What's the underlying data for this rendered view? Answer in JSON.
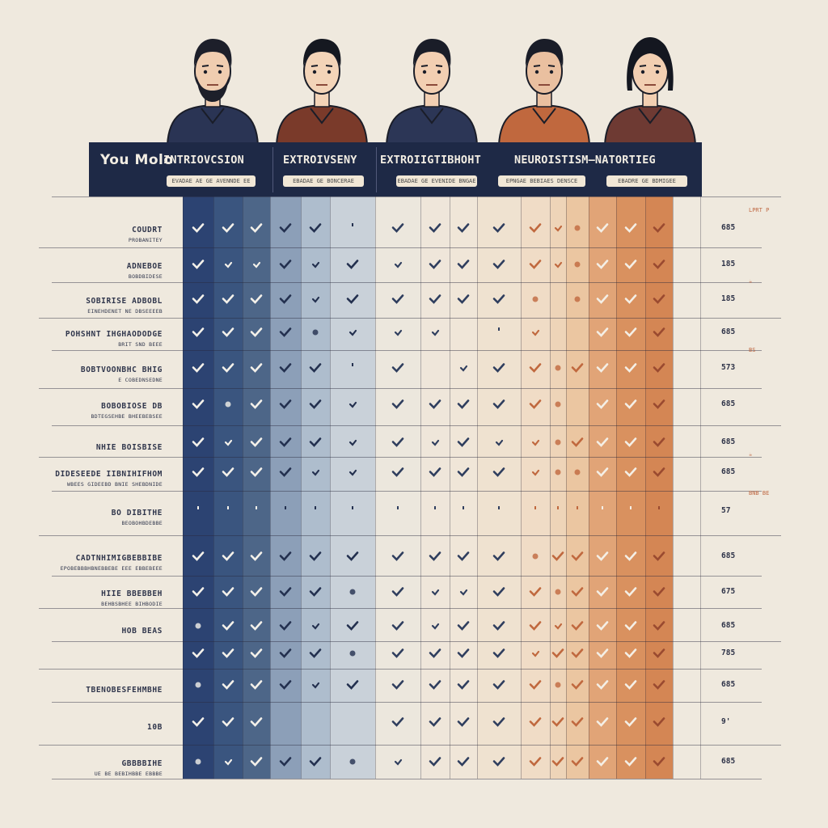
{
  "header": {
    "corner_label": "You Molo",
    "traits": [
      {
        "title": "INTRIOVCSION",
        "pill": "EVADAE AE GE AVENNDE EE"
      },
      {
        "title": "EXTROIVSENY",
        "pill": "EBADAE GE BONCERAE"
      },
      {
        "title": "EXTROIIGTIBHOHT",
        "pill": "EBADAE GE EVENIDE BNGAE"
      },
      {
        "title": "NEUROISTISM–NATORTIEG",
        "pill": "EPNGAE BEBIAES DENSCE"
      },
      {
        "title": "",
        "pill": "EBADRE GE BDMIGEE"
      }
    ]
  },
  "people": [
    {
      "name": "person-1-icon",
      "shirt": "#2a3454",
      "skin": "#f0cdb0",
      "hair": "#1d1f2a",
      "beard": true
    },
    {
      "name": "person-2-icon",
      "shirt": "#7a3a2a",
      "skin": "#f3d4b8",
      "hair": "#151820",
      "beard": false
    },
    {
      "name": "person-3-icon",
      "shirt": "#2c3656",
      "skin": "#f2cfb2",
      "hair": "#1a1d28",
      "beard": false
    },
    {
      "name": "person-4-icon",
      "shirt": "#c0683e",
      "skin": "#eac0a0",
      "hair": "#1a1d28",
      "beard": false
    },
    {
      "name": "person-5-icon",
      "shirt": "#6e3a33",
      "skin": "#f2cfb2",
      "hair": "#141720",
      "beard": false
    }
  ],
  "colors": {
    "navy": "#1e2946",
    "columns": [
      "#2c4372",
      "#3a557f",
      "#4d6688",
      "#8c9fb8",
      "#aebdcd",
      "#c9d1d9",
      "#ece7dd",
      "#efe6da",
      "#f0e6d8",
      "#efe2d0",
      "#f0dcc6",
      "#eed4b8",
      "#ebc6a1",
      "#e1a477",
      "#d9915f",
      "#d48654"
    ]
  },
  "rows": [
    {
      "label": "COUDRT",
      "sub": "PROBANITEY",
      "score": "685",
      "note": "LPRT P"
    },
    {
      "label": "ADNEBOE",
      "sub": "BOBDBIDESE",
      "score": "185",
      "note": ""
    },
    {
      "label": "SOBIRISE  ADBOBL",
      "sub": "EINEHDENET NE DBSEEEEB",
      "score": "185",
      "note": "☕"
    },
    {
      "label": "POHSHNT IHGHAODODGE",
      "sub": "BRIT SND BEEE",
      "score": "685",
      "note": ""
    },
    {
      "label": "BOBTVOONBHC BHIG",
      "sub": "E COBEDNSEDNE",
      "score": "573",
      "note": "BS"
    },
    {
      "label": "BOBOBIOSE DB",
      "sub": "BDTEGSEHBE BHEEBEBSEE",
      "score": "685",
      "note": ""
    },
    {
      "label": "NHIE BOISBISE",
      "sub": "",
      "score": "685",
      "note": ""
    },
    {
      "label": "DIDESEEDE IIBNIHIFHOM",
      "sub": "WBEES GIDEEBD BNIE SHEBDNIDE",
      "score": "685",
      "note": "☕"
    },
    {
      "label": "BO DIBITHE",
      "sub": "BEOBOHBDEBBE",
      "score": "57",
      "note": "BNB BE"
    },
    {
      "label": "CADTNHIMIGBEBBIBE",
      "sub": "EPOBEBBBHBNEBBEBE EEE EBBEBEEE",
      "score": "685",
      "note": ""
    },
    {
      "label": "HIIE BBEBBEH",
      "sub": "BEHBSBHEE BIHBODIE",
      "score": "675",
      "note": ""
    },
    {
      "label": "HOB BEAS",
      "sub": "",
      "score": "685",
      "note": ""
    },
    {
      "label": "",
      "sub": "",
      "score": "785",
      "note": ""
    },
    {
      "label": "TBENOBESFEHMBHE",
      "sub": "",
      "score": "685",
      "note": ""
    },
    {
      "label": "10B",
      "sub": "",
      "score": "9'",
      "note": ""
    },
    {
      "label": "GBBBBIHE",
      "sub": "UE BE BEBIHBBE EBBBE",
      "score": "685",
      "note": ""
    }
  ]
}
